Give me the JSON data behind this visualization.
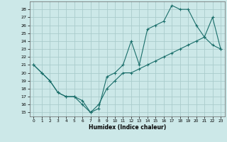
{
  "xlabel": "Humidex (Indice chaleur)",
  "bg_color": "#cce8e8",
  "grid_color": "#aacccc",
  "line_color": "#1a6e6a",
  "xlim": [
    -0.5,
    23.5
  ],
  "ylim": [
    14.5,
    29
  ],
  "xticks": [
    0,
    1,
    2,
    3,
    4,
    5,
    6,
    7,
    8,
    9,
    10,
    11,
    12,
    13,
    14,
    15,
    16,
    17,
    18,
    19,
    20,
    21,
    22,
    23
  ],
  "yticks": [
    15,
    16,
    17,
    18,
    19,
    20,
    21,
    22,
    23,
    24,
    25,
    26,
    27,
    28
  ],
  "series1_x": [
    0,
    1,
    2,
    3,
    4,
    5,
    6,
    7,
    8,
    9,
    10,
    11,
    12,
    13,
    14,
    15,
    16,
    17,
    18,
    19,
    20,
    21,
    22,
    23
  ],
  "series1_y": [
    21,
    20,
    19,
    17.5,
    17,
    17,
    16.5,
    15,
    15.5,
    19.5,
    20,
    21,
    24,
    21,
    25.5,
    26,
    26.5,
    28.5,
    28,
    28,
    26,
    24.5,
    23.5,
    23
  ],
  "series2_x": [
    0,
    1,
    2,
    3,
    4,
    5,
    6,
    7,
    8,
    9,
    10,
    11,
    12,
    13,
    14,
    15,
    16,
    17,
    18,
    19,
    20,
    21,
    22,
    23
  ],
  "series2_y": [
    21,
    20,
    19,
    17.5,
    17,
    17,
    16,
    15,
    16,
    18,
    19,
    20,
    20,
    20.5,
    21,
    21.5,
    22,
    22.5,
    23,
    23.5,
    24,
    24.5,
    27,
    23
  ]
}
